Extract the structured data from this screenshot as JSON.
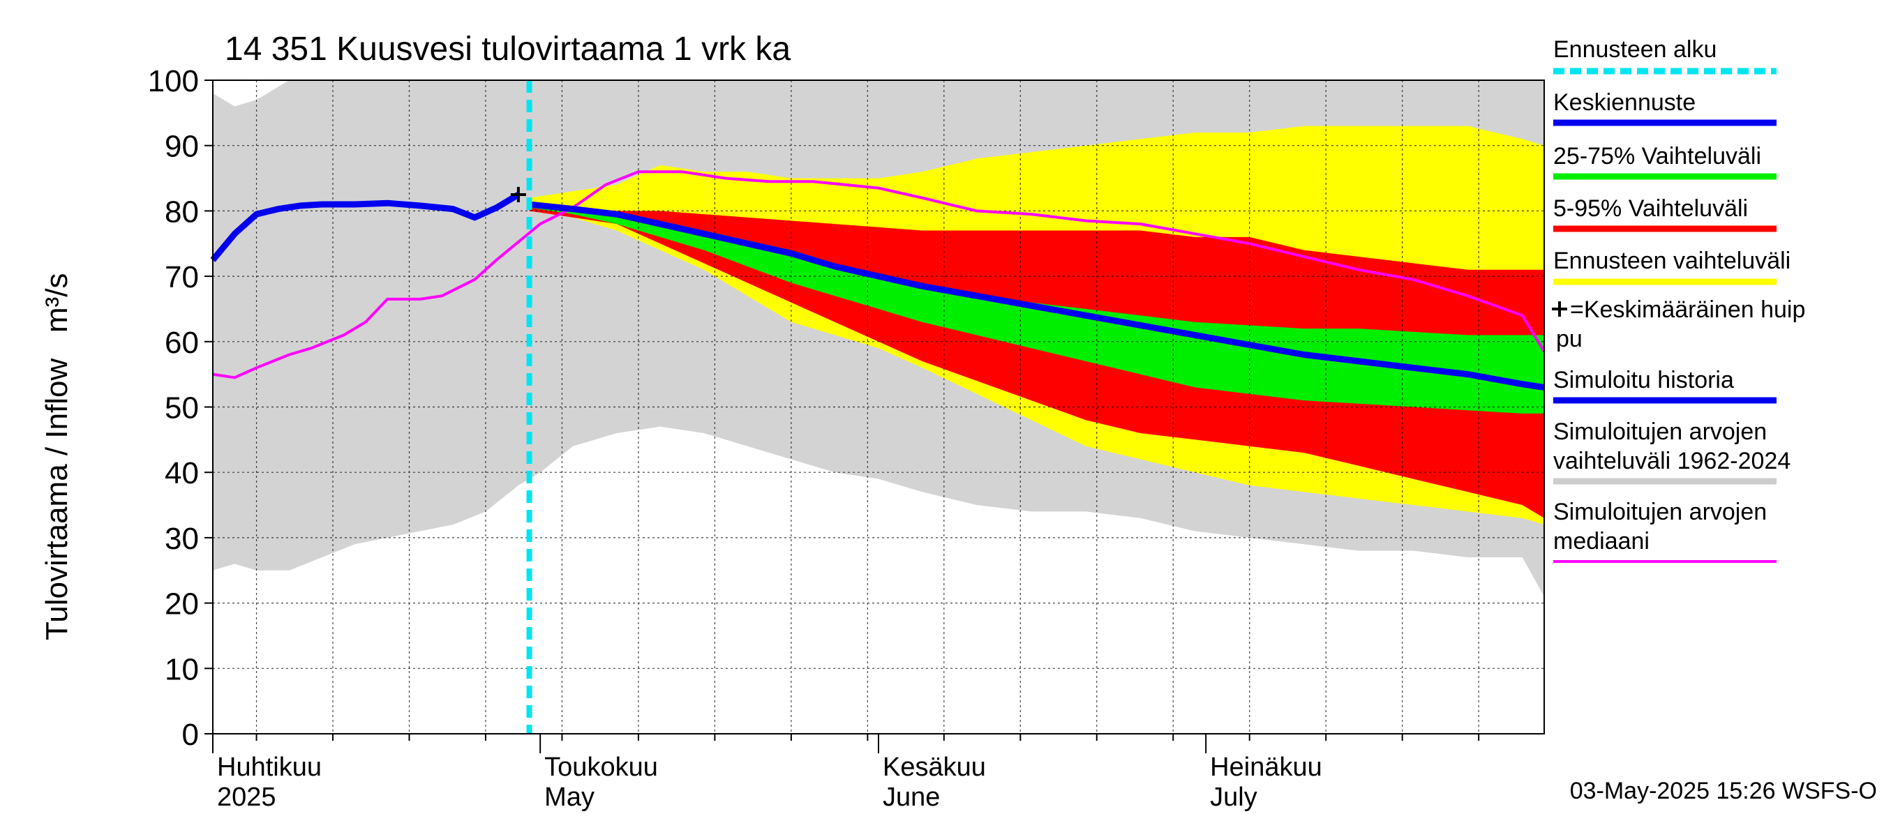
{
  "chart_data": {
    "type": "area",
    "title": "14 351 Kuusvesi tulovirtaama 1 vrk ka",
    "ylabel": "Tulovirtaama / Inflow   m³/s",
    "ylim": [
      0,
      100
    ],
    "yticks": [
      0,
      10,
      20,
      30,
      40,
      50,
      60,
      70,
      80,
      90,
      100
    ],
    "xlim": [
      "2025-04-01",
      "2025-08-01"
    ],
    "months": [
      {
        "date": "2025-04-01",
        "fi": "Huhtikuu",
        "en": "2025"
      },
      {
        "date": "2025-05-01",
        "fi": "Toukokuu",
        "en": "May"
      },
      {
        "date": "2025-06-01",
        "fi": "Kesäkuu",
        "en": "June"
      },
      {
        "date": "2025-07-01",
        "fi": "Heinäkuu",
        "en": "July"
      }
    ],
    "forecast_start": "2025-04-30",
    "mean_peak": {
      "date": "2025-04-29",
      "value": 82.5
    },
    "historical_range": {
      "dates": [
        "2025-04-01",
        "2025-04-03",
        "2025-04-05",
        "2025-04-08",
        "2025-04-11",
        "2025-04-14",
        "2025-04-17",
        "2025-04-20",
        "2025-04-23",
        "2025-04-26",
        "2025-04-29",
        "2025-05-01",
        "2025-05-04",
        "2025-05-08",
        "2025-05-12",
        "2025-05-16",
        "2025-05-20",
        "2025-05-24",
        "2025-05-28",
        "2025-06-01",
        "2025-06-05",
        "2025-06-10",
        "2025-06-15",
        "2025-06-20",
        "2025-06-25",
        "2025-06-30",
        "2025-07-05",
        "2025-07-10",
        "2025-07-15",
        "2025-07-20",
        "2025-07-25",
        "2025-07-30",
        "2025-08-01"
      ],
      "upper": [
        98,
        96,
        97,
        100,
        100,
        100,
        100,
        100,
        100,
        100,
        100,
        100,
        100,
        100,
        100,
        100,
        100,
        100,
        100,
        100,
        100,
        100,
        100,
        100,
        100,
        100,
        100,
        100,
        100,
        100,
        100,
        100,
        100
      ],
      "lower": [
        25,
        26,
        25,
        25,
        27,
        29,
        30,
        31,
        32,
        34,
        38,
        40,
        44,
        46,
        47,
        46,
        44,
        42,
        40,
        39,
        37,
        35,
        34,
        34,
        33,
        31,
        30,
        29,
        28,
        28,
        27,
        27,
        21
      ]
    },
    "forecast_range": {
      "dates": [
        "2025-04-30",
        "2025-05-04",
        "2025-05-08",
        "2025-05-12",
        "2025-05-16",
        "2025-05-20",
        "2025-05-24",
        "2025-05-28",
        "2025-06-01",
        "2025-06-05",
        "2025-06-10",
        "2025-06-15",
        "2025-06-20",
        "2025-06-25",
        "2025-06-30",
        "2025-07-05",
        "2025-07-10",
        "2025-07-15",
        "2025-07-20",
        "2025-07-25",
        "2025-07-30",
        "2025-08-01"
      ],
      "upper": [
        82,
        83,
        84,
        87,
        86,
        86,
        85,
        85,
        85,
        86,
        88,
        89,
        90,
        91,
        92,
        92,
        93,
        93,
        93,
        93,
        91,
        90
      ],
      "lower": [
        80,
        79,
        77,
        74,
        71,
        67,
        63,
        61,
        59,
        56,
        52,
        48,
        44,
        42,
        40,
        38,
        37,
        36,
        35,
        34,
        33,
        32
      ]
    },
    "p5_95": {
      "dates": [
        "2025-04-30",
        "2025-05-04",
        "2025-05-08",
        "2025-05-12",
        "2025-05-16",
        "2025-05-20",
        "2025-05-24",
        "2025-05-28",
        "2025-06-01",
        "2025-06-05",
        "2025-06-10",
        "2025-06-15",
        "2025-06-20",
        "2025-06-25",
        "2025-06-30",
        "2025-07-05",
        "2025-07-10",
        "2025-07-15",
        "2025-07-20",
        "2025-07-25",
        "2025-07-30",
        "2025-08-01"
      ],
      "upper": [
        81,
        80.5,
        80,
        80,
        79.5,
        79,
        78.5,
        78,
        77.5,
        77,
        77,
        77,
        77,
        77,
        76,
        76,
        74,
        73,
        72,
        71,
        71,
        71
      ],
      "lower": [
        80,
        79,
        78,
        75,
        72,
        69,
        66,
        63,
        60,
        57,
        54,
        51,
        48,
        46,
        45,
        44,
        43,
        41,
        39,
        37,
        35,
        33
      ]
    },
    "p25_75": {
      "dates": [
        "2025-04-30",
        "2025-05-04",
        "2025-05-08",
        "2025-05-12",
        "2025-05-16",
        "2025-05-20",
        "2025-05-24",
        "2025-05-28",
        "2025-06-01",
        "2025-06-05",
        "2025-06-10",
        "2025-06-15",
        "2025-06-20",
        "2025-06-25",
        "2025-06-30",
        "2025-07-05",
        "2025-07-10",
        "2025-07-15",
        "2025-07-20",
        "2025-07-25",
        "2025-07-30",
        "2025-08-01"
      ],
      "upper": [
        81,
        80.5,
        79.5,
        78.5,
        77,
        75.5,
        74,
        72,
        70,
        68.5,
        67,
        66,
        65,
        64,
        63,
        62.5,
        62,
        62,
        61.5,
        61,
        61,
        61
      ],
      "lower": [
        80.5,
        79.5,
        78,
        76,
        74,
        71.5,
        69,
        67,
        65,
        63,
        61,
        59,
        57,
        55,
        53,
        52,
        51,
        50.5,
        50,
        49.5,
        49,
        49
      ]
    },
    "mean_forecast": {
      "dates": [
        "2025-04-30",
        "2025-05-04",
        "2025-05-08",
        "2025-05-12",
        "2025-05-16",
        "2025-05-20",
        "2025-05-24",
        "2025-05-28",
        "2025-06-01",
        "2025-06-05",
        "2025-06-10",
        "2025-06-15",
        "2025-06-20",
        "2025-06-25",
        "2025-06-30",
        "2025-07-05",
        "2025-07-10",
        "2025-07-15",
        "2025-07-20",
        "2025-07-25",
        "2025-07-30",
        "2025-08-01"
      ],
      "values": [
        81,
        80.3,
        79.5,
        78,
        76.5,
        75,
        73.5,
        71.5,
        70,
        68.5,
        67,
        65.5,
        64,
        62.5,
        61,
        59.5,
        58,
        57,
        56,
        55,
        53.5,
        53
      ]
    },
    "simulated_history": {
      "dates": [
        "2025-04-01",
        "2025-04-03",
        "2025-04-05",
        "2025-04-07",
        "2025-04-09",
        "2025-04-11",
        "2025-04-14",
        "2025-04-17",
        "2025-04-20",
        "2025-04-23",
        "2025-04-25",
        "2025-04-27",
        "2025-04-29"
      ],
      "values": [
        72.5,
        76.5,
        79.5,
        80.3,
        80.8,
        81,
        81,
        81.2,
        80.8,
        80.3,
        79,
        80.5,
        82.5
      ]
    },
    "median": {
      "dates": [
        "2025-04-01",
        "2025-04-03",
        "2025-04-05",
        "2025-04-08",
        "2025-04-10",
        "2025-04-13",
        "2025-04-15",
        "2025-04-17",
        "2025-04-20",
        "2025-04-22",
        "2025-04-25",
        "2025-04-27",
        "2025-05-01",
        "2025-05-04",
        "2025-05-07",
        "2025-05-10",
        "2025-05-14",
        "2025-05-18",
        "2025-05-22",
        "2025-05-26",
        "2025-06-01",
        "2025-06-05",
        "2025-06-10",
        "2025-06-15",
        "2025-06-20",
        "2025-06-25",
        "2025-06-30",
        "2025-07-05",
        "2025-07-10",
        "2025-07-15",
        "2025-07-20",
        "2025-07-25",
        "2025-07-30",
        "2025-08-01"
      ],
      "values": [
        55,
        54.5,
        56,
        58,
        59,
        61,
        63,
        66.5,
        66.5,
        67,
        69.5,
        72.5,
        78,
        80.5,
        84,
        86,
        86,
        85,
        84.5,
        84.5,
        83.5,
        82,
        80,
        79.5,
        78.5,
        78,
        76.5,
        75,
        73,
        71,
        69.5,
        67,
        64,
        58.5
      ]
    },
    "legend": [
      {
        "label": "Ennusteen alku",
        "color": "#00e5f2",
        "style": "dashed"
      },
      {
        "label": "Keskiennuste",
        "color": "#0000ee",
        "style": "line"
      },
      {
        "label": "25-75% Vaihteluväli",
        "color": "#00ee00",
        "style": "line"
      },
      {
        "label": "5-95% Vaihteluväli",
        "color": "#ff0000",
        "style": "line"
      },
      {
        "label": "Ennusteen vaihteluväli",
        "color": "#ffff00",
        "style": "line"
      },
      {
        "label": "✚=Keskimääräinen huippu",
        "color": "#000000",
        "style": "marker"
      },
      {
        "label": "Simuloitu historia",
        "color": "#0000ee",
        "style": "line"
      },
      {
        "label": "Simuloitujen arvojen vaihteluväli 1962-2024",
        "color": "#cccccc",
        "style": "line"
      },
      {
        "label": "Simuloitujen arvojen mediaani",
        "color": "#ff00ff",
        "style": "line"
      }
    ],
    "legend_placement": "right",
    "grid": true,
    "colors": {
      "historical_range": "#d3d3d3",
      "forecast_range": "#ffff00",
      "p5_95": "#ff0000",
      "p25_75": "#00ee00",
      "mean": "#0000ee",
      "median": "#ff00ff",
      "forecast_start": "#00e5f2"
    }
  },
  "footer": {
    "timestamp": "03-May-2025 15:26 WSFS-O"
  }
}
